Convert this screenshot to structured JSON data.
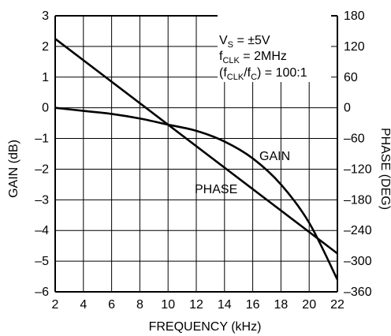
{
  "chart_data": {
    "type": "line",
    "xlabel": "FREQUENCY (kHz)",
    "ylabel_left": "GAIN (dB)",
    "ylabel_right": "PHASE (DEG)",
    "xlim": [
      2,
      22
    ],
    "ylim_left": [
      -6,
      3
    ],
    "ylim_right": [
      -360,
      180
    ],
    "x_ticks": [
      "2",
      "4",
      "6",
      "8",
      "10",
      "12",
      "14",
      "16",
      "18",
      "20",
      "22"
    ],
    "y_left_ticks": [
      "3",
      "2",
      "1",
      "0",
      "–1",
      "–2",
      "–3",
      "–4",
      "–5",
      "–6"
    ],
    "y_right_ticks": [
      "180",
      "120",
      "60",
      "0",
      "–60",
      "–120",
      "–180",
      "–240",
      "–300",
      "–360"
    ],
    "grid": true,
    "annotation": {
      "line1": "VS = ±5V",
      "line2": "fCLK = 2MHz",
      "line3": "(fCLK/fC) = 100:1"
    },
    "series": [
      {
        "name": "GAIN",
        "axis": "left",
        "x": [
          2,
          4,
          6,
          8,
          10,
          12,
          14,
          16,
          18,
          20,
          22
        ],
        "y": [
          0,
          -0.1,
          -0.2,
          -0.35,
          -0.55,
          -0.75,
          -1.1,
          -1.65,
          -2.5,
          -3.75,
          -5.6
        ]
      },
      {
        "name": "PHASE",
        "axis": "right",
        "x": [
          2,
          22
        ],
        "y": [
          135,
          -285
        ]
      }
    ]
  }
}
